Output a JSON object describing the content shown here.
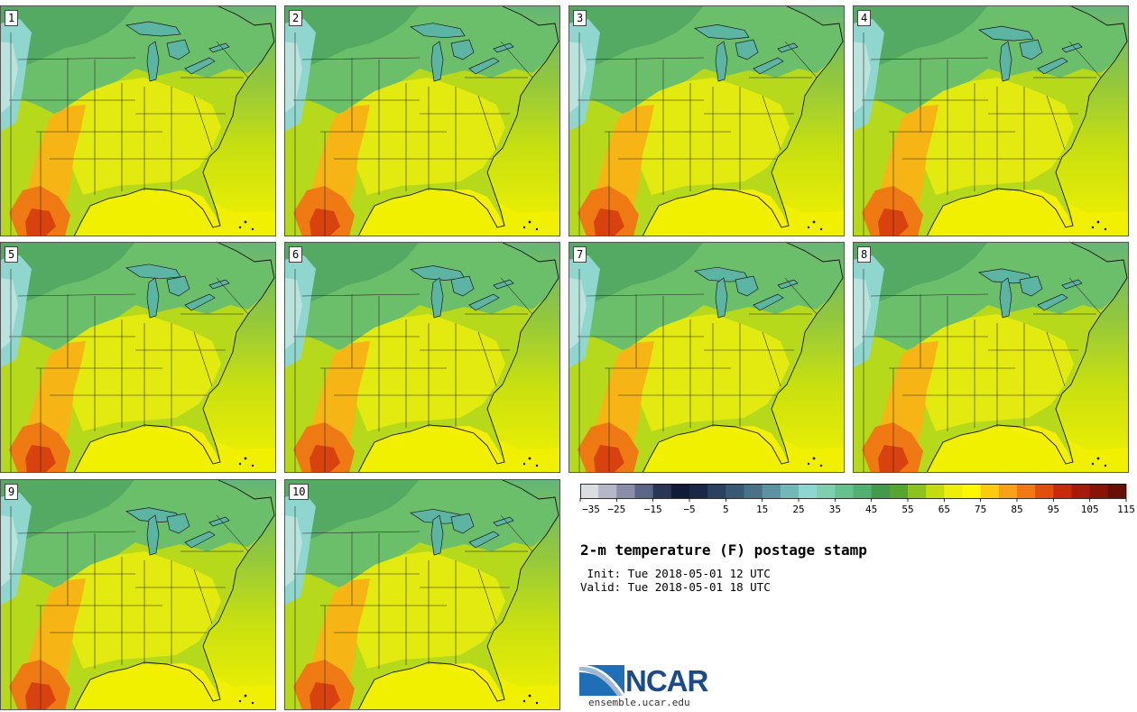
{
  "panels": [
    {
      "label": "1"
    },
    {
      "label": "2"
    },
    {
      "label": "3"
    },
    {
      "label": "4"
    },
    {
      "label": "5"
    },
    {
      "label": "6"
    },
    {
      "label": "7"
    },
    {
      "label": "8"
    },
    {
      "label": "9"
    },
    {
      "label": "10"
    }
  ],
  "title": "2-m temperature (F) postage stamp",
  "init": " Init: Tue 2018-05-01 12 UTC",
  "valid": "Valid: Tue 2018-05-01 18 UTC",
  "logo": {
    "name": "NCAR",
    "url": "ensemble.ucar.edu"
  },
  "colorbar": {
    "tick_labels": [
      "−35",
      "−25",
      "−15",
      "−5",
      "5",
      "15",
      "25",
      "35",
      "45",
      "55",
      "65",
      "75",
      "85",
      "95",
      "105",
      "115"
    ],
    "colors": [
      "#dcdde0",
      "#b5b6c8",
      "#8a8ea6",
      "#5b6585",
      "#2b3656",
      "#111a36",
      "#1a2746",
      "#2b415f",
      "#395873",
      "#4a7187",
      "#5c93a1",
      "#74b7b9",
      "#8fd6cf",
      "#7fcfae",
      "#68c08f",
      "#55ae72",
      "#43994c",
      "#56a532",
      "#8cc31c",
      "#c2dc0d",
      "#eeef06",
      "#fff700",
      "#fbcb10",
      "#f7a214",
      "#f27813",
      "#e34d0e",
      "#c9290c",
      "#a81a0c",
      "#861409",
      "#651108"
    ]
  },
  "colors": {
    "ocean_warm": "#f2f200",
    "ocean_cool": "#a6d11a"
  }
}
